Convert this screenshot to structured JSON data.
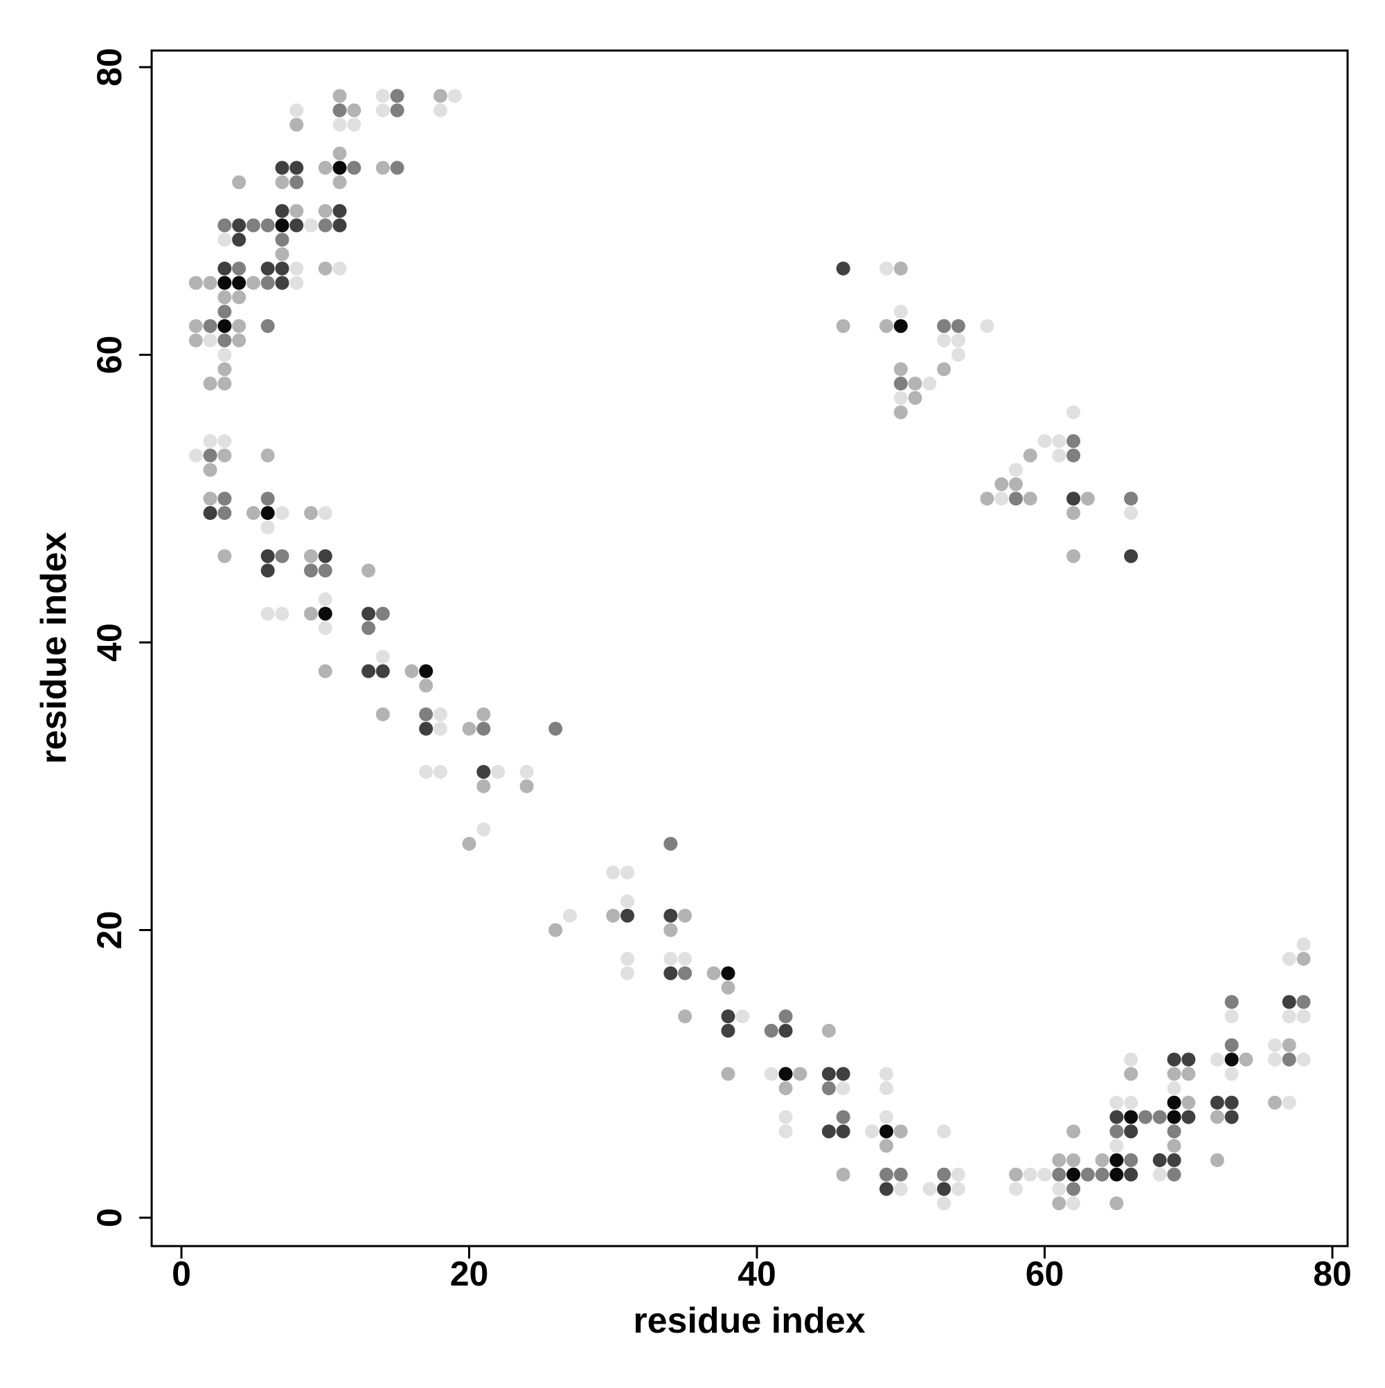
{
  "chart_data": {
    "type": "scatter",
    "x_label": "residue index",
    "y_label": "residue index",
    "xlim": [
      0,
      80
    ],
    "ylim": [
      0,
      80
    ],
    "xticks": [
      0,
      20,
      40,
      60,
      80
    ],
    "yticks": [
      0,
      20,
      40,
      60,
      80
    ],
    "grid": false,
    "series": [
      {
        "color": "#0a0a0a",
        "x": [
          11,
          7,
          3,
          4,
          3,
          6,
          10,
          17,
          38,
          42,
          49,
          62,
          65,
          65,
          66,
          69,
          69,
          73,
          50
        ],
        "y": [
          73,
          69,
          65,
          65,
          62,
          49,
          42,
          38,
          17,
          10,
          6,
          3,
          3,
          4,
          7,
          7,
          8,
          11,
          62
        ]
      },
      {
        "color": "#404040",
        "x": [
          7,
          8,
          7,
          11,
          4,
          8,
          11,
          4,
          3,
          6,
          7,
          7,
          2,
          6,
          10,
          6,
          13,
          13,
          14,
          17,
          21,
          31,
          34,
          34,
          38,
          38,
          42,
          45,
          46,
          45,
          46,
          49,
          53,
          66,
          68,
          69,
          66,
          65,
          70,
          73,
          72,
          73,
          69,
          70,
          77,
          46,
          62,
          66
        ],
        "y": [
          73,
          73,
          70,
          70,
          69,
          69,
          69,
          68,
          66,
          66,
          66,
          65,
          49,
          46,
          46,
          45,
          42,
          38,
          38,
          34,
          31,
          21,
          21,
          17,
          14,
          13,
          13,
          10,
          10,
          6,
          6,
          2,
          2,
          3,
          4,
          4,
          6,
          7,
          7,
          7,
          8,
          8,
          11,
          11,
          15,
          66,
          50,
          46
        ]
      },
      {
        "color": "#7f7f7f",
        "x": [
          15,
          11,
          15,
          12,
          15,
          8,
          3,
          5,
          6,
          10,
          7,
          4,
          6,
          3,
          2,
          6,
          3,
          2,
          3,
          6,
          3,
          7,
          9,
          10,
          14,
          13,
          17,
          21,
          26,
          34,
          35,
          42,
          41,
          45,
          46,
          49,
          50,
          53,
          61,
          63,
          64,
          69,
          62,
          66,
          65,
          69,
          67,
          68,
          73,
          77,
          73,
          78,
          53,
          54,
          50,
          62,
          62,
          58,
          66
        ],
        "y": [
          78,
          77,
          77,
          73,
          73,
          72,
          69,
          69,
          69,
          69,
          68,
          66,
          65,
          63,
          62,
          62,
          61,
          53,
          50,
          50,
          49,
          46,
          45,
          45,
          42,
          41,
          35,
          34,
          34,
          26,
          17,
          14,
          13,
          9,
          7,
          3,
          3,
          3,
          3,
          3,
          3,
          3,
          2,
          4,
          6,
          6,
          7,
          7,
          12,
          11,
          15,
          15,
          62,
          62,
          58,
          54,
          53,
          50,
          50
        ]
      },
      {
        "color": "#b3b3b3",
        "x": [
          11,
          18,
          12,
          8,
          11,
          10,
          14,
          4,
          7,
          11,
          8,
          10,
          7,
          10,
          1,
          2,
          5,
          3,
          4,
          1,
          4,
          1,
          4,
          3,
          2,
          3,
          3,
          6,
          2,
          2,
          5,
          9,
          3,
          9,
          13,
          9,
          10,
          16,
          17,
          14,
          21,
          20,
          21,
          24,
          20,
          30,
          35,
          26,
          34,
          37,
          38,
          35,
          45,
          38,
          43,
          42,
          50,
          49,
          46,
          58,
          61,
          65,
          61,
          62,
          64,
          72,
          69,
          62,
          72,
          76,
          70,
          66,
          69,
          70,
          74,
          77,
          78,
          46,
          49,
          50,
          50,
          53,
          51,
          51,
          50,
          59,
          57,
          58,
          56,
          59,
          63,
          62,
          62
        ],
        "y": [
          78,
          78,
          77,
          76,
          74,
          73,
          73,
          72,
          72,
          72,
          70,
          70,
          67,
          66,
          65,
          65,
          65,
          64,
          64,
          62,
          62,
          61,
          61,
          59,
          58,
          58,
          53,
          53,
          52,
          50,
          49,
          49,
          46,
          46,
          45,
          42,
          38,
          38,
          37,
          35,
          35,
          34,
          30,
          30,
          26,
          21,
          21,
          20,
          20,
          17,
          16,
          14,
          13,
          10,
          10,
          9,
          6,
          5,
          3,
          3,
          1,
          1,
          4,
          4,
          4,
          4,
          5,
          6,
          7,
          8,
          8,
          10,
          10,
          10,
          11,
          12,
          18,
          62,
          62,
          66,
          59,
          59,
          58,
          57,
          56,
          53,
          51,
          51,
          50,
          50,
          50,
          49,
          46
        ]
      },
      {
        "color": "#e0e0e0",
        "x": [
          14,
          19,
          8,
          14,
          18,
          11,
          12,
          9,
          3,
          8,
          11,
          8,
          2,
          3,
          2,
          3,
          1,
          7,
          10,
          6,
          10,
          6,
          7,
          10,
          14,
          18,
          18,
          17,
          18,
          22,
          24,
          21,
          30,
          31,
          31,
          27,
          31,
          34,
          35,
          31,
          39,
          41,
          49,
          46,
          49,
          42,
          49,
          42,
          48,
          53,
          54,
          59,
          60,
          68,
          50,
          52,
          54,
          58,
          61,
          53,
          62,
          65,
          65,
          66,
          77,
          69,
          73,
          66,
          72,
          76,
          78,
          76,
          73,
          77,
          78,
          77,
          78,
          49,
          50,
          56,
          53,
          54,
          54,
          52,
          50,
          62,
          60,
          61,
          61,
          58,
          57,
          66
        ],
        "y": [
          78,
          78,
          77,
          77,
          77,
          76,
          76,
          69,
          68,
          66,
          66,
          65,
          61,
          60,
          54,
          54,
          53,
          49,
          49,
          48,
          43,
          42,
          42,
          41,
          39,
          35,
          34,
          31,
          31,
          31,
          31,
          27,
          24,
          24,
          22,
          21,
          18,
          18,
          18,
          17,
          14,
          10,
          10,
          9,
          9,
          7,
          7,
          6,
          6,
          6,
          3,
          3,
          3,
          3,
          2,
          2,
          2,
          2,
          2,
          1,
          1,
          5,
          8,
          8,
          8,
          9,
          10,
          11,
          11,
          11,
          11,
          12,
          14,
          14,
          14,
          18,
          19,
          66,
          63,
          62,
          61,
          61,
          60,
          58,
          57,
          56,
          54,
          54,
          53,
          52,
          50,
          49
        ]
      }
    ]
  }
}
